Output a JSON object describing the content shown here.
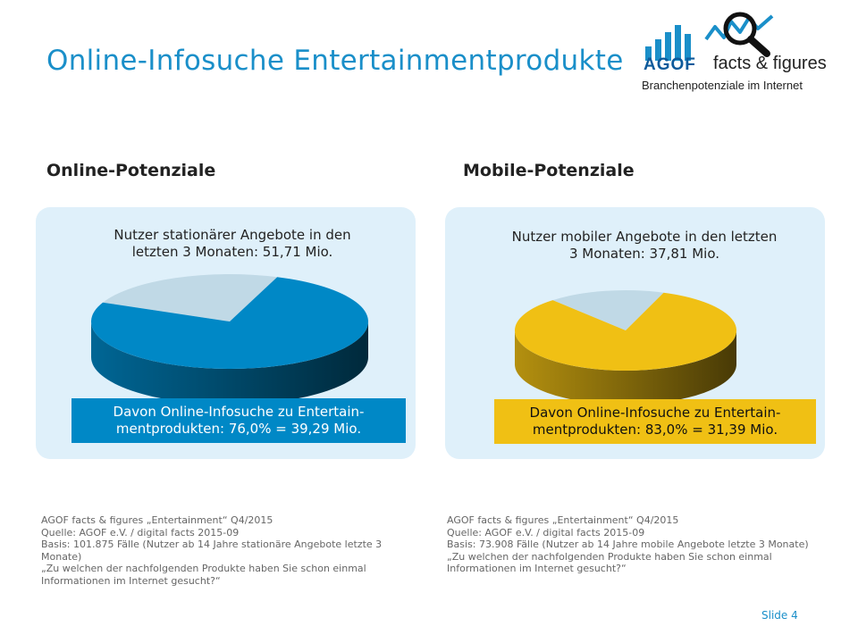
{
  "header": {
    "title": "Online-Infosuche Entertainmentprodukte"
  },
  "logo": {
    "brand": "AGOF",
    "tagline": "facts & figures",
    "subtitle": "Branchenpotenziale im Internet",
    "bar_color": "#1a8fc9",
    "icon": "magnifier-chart-icon"
  },
  "online": {
    "heading": "Online-Potenziale",
    "label_line1": "Nutzer stationärer Angebote in den",
    "label_line2": "letzten 3 Monaten: 51,71 Mio.",
    "result_line1": "Davon Online-Infosuche zu Entertain-",
    "result_line2": "mentprodukten: 76,0% = 39,29 Mio.",
    "color": "#0088c6",
    "rest_color": "#c0d9e6",
    "notes": [
      "AGOF facts & figures „Entertainment“ Q4/2015",
      "Quelle: AGOF e.V. / digital facts 2015-09",
      "Basis: 101.875 Fälle (Nutzer ab 14 Jahre stationäre Angebote letzte 3 Monate)",
      "„Zu welchen der nachfolgenden Produkte haben Sie schon einmal Informationen im Internet gesucht?“"
    ]
  },
  "mobile": {
    "heading": "Mobile-Potenziale",
    "label_line1": "Nutzer mobiler Angebote in den letzten",
    "label_line2": "3 Monaten: 37,81 Mio.",
    "result_line1": "Davon Online-Infosuche zu Entertain-",
    "result_line2": "mentprodukten: 83,0% = 31,39 Mio.",
    "color": "#f0c014",
    "rest_color": "#c0d9e6",
    "notes": [
      "AGOF facts & figures „Entertainment“ Q4/2015",
      "Quelle: AGOF e.V. / digital facts 2015-09",
      "Basis: 73.908 Fälle (Nutzer ab 14 Jahre mobile Angebote letzte 3 Monate)",
      "„Zu welchen der nachfolgenden Produkte haben Sie schon einmal Informationen im Internet gesucht?“"
    ]
  },
  "footer": {
    "slide": "Slide 4"
  },
  "chart_data": [
    {
      "type": "pie",
      "categories": [
        "Online-Infosuche zu Entertainmentprodukten",
        "Rest"
      ],
      "values": [
        76.0,
        24.0
      ]
    },
    {
      "type": "pie",
      "categories": [
        "Online-Infosuche zu Entertainmentprodukten",
        "Rest"
      ],
      "values": [
        83.0,
        17.0
      ]
    }
  ]
}
